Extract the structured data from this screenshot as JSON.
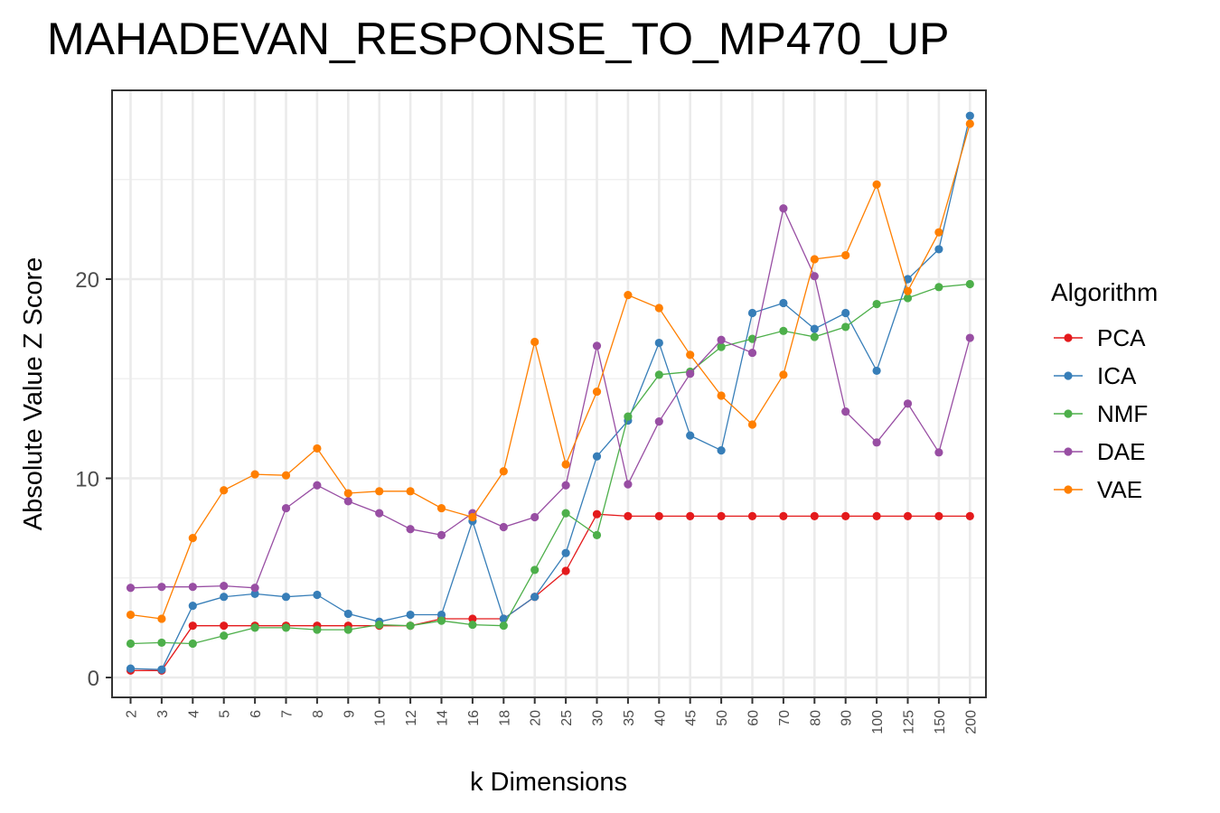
{
  "chart_data": {
    "type": "line",
    "title": "MAHADEVAN_RESPONSE_TO_MP470_UP",
    "xlabel": "k Dimensions",
    "ylabel": "Absolute Value Z Score",
    "categories": [
      "2",
      "3",
      "4",
      "5",
      "6",
      "7",
      "8",
      "9",
      "10",
      "12",
      "14",
      "16",
      "18",
      "20",
      "25",
      "30",
      "35",
      "40",
      "45",
      "50",
      "60",
      "70",
      "80",
      "90",
      "100",
      "125",
      "150",
      "200"
    ],
    "y_ticks": [
      0,
      10,
      20
    ],
    "ylim": [
      -1,
      29.5
    ],
    "grid": true,
    "legend_title": "Algorithm",
    "legend_position": "right",
    "series": [
      {
        "name": "PCA",
        "color": "#E41A1C",
        "values": [
          0.35,
          0.35,
          2.6,
          2.6,
          2.6,
          2.6,
          2.6,
          2.6,
          2.6,
          2.6,
          2.95,
          2.95,
          2.95,
          4.05,
          5.35,
          8.2,
          8.1,
          8.1,
          8.1,
          8.1,
          8.1,
          8.1,
          8.1,
          8.1,
          8.1,
          8.1,
          8.1,
          8.1
        ]
      },
      {
        "name": "ICA",
        "color": "#377EB8",
        "values": [
          0.45,
          0.4,
          3.6,
          4.05,
          4.2,
          4.05,
          4.15,
          3.2,
          2.8,
          3.15,
          3.15,
          7.85,
          2.95,
          4.05,
          6.25,
          11.1,
          12.9,
          16.8,
          12.15,
          11.4,
          18.3,
          18.8,
          17.5,
          18.3,
          15.4,
          20.0,
          21.5,
          28.2
        ]
      },
      {
        "name": "NMF",
        "color": "#4DAF4A",
        "values": [
          1.7,
          1.75,
          1.7,
          2.1,
          2.5,
          2.5,
          2.4,
          2.4,
          2.65,
          2.6,
          2.85,
          2.65,
          2.6,
          5.4,
          8.25,
          7.15,
          13.1,
          15.2,
          15.35,
          16.6,
          17.0,
          17.4,
          17.1,
          17.6,
          18.75,
          19.05,
          19.6,
          19.75
        ]
      },
      {
        "name": "DAE",
        "color": "#984EA3",
        "values": [
          4.5,
          4.55,
          4.55,
          4.6,
          4.5,
          8.5,
          9.65,
          8.85,
          8.25,
          7.45,
          7.15,
          8.25,
          7.55,
          8.05,
          9.65,
          16.65,
          9.7,
          12.85,
          15.25,
          16.95,
          16.3,
          23.55,
          20.15,
          13.35,
          11.8,
          13.75,
          11.3,
          17.05
        ]
      },
      {
        "name": "VAE",
        "color": "#FF7F00",
        "values": [
          3.15,
          2.95,
          7.0,
          9.4,
          10.2,
          10.15,
          11.5,
          9.25,
          9.35,
          9.35,
          8.5,
          8.05,
          10.35,
          16.85,
          10.7,
          14.35,
          19.2,
          18.55,
          16.2,
          14.15,
          12.7,
          15.2,
          21.0,
          21.2,
          24.75,
          19.4,
          22.35,
          27.8
        ]
      }
    ]
  }
}
